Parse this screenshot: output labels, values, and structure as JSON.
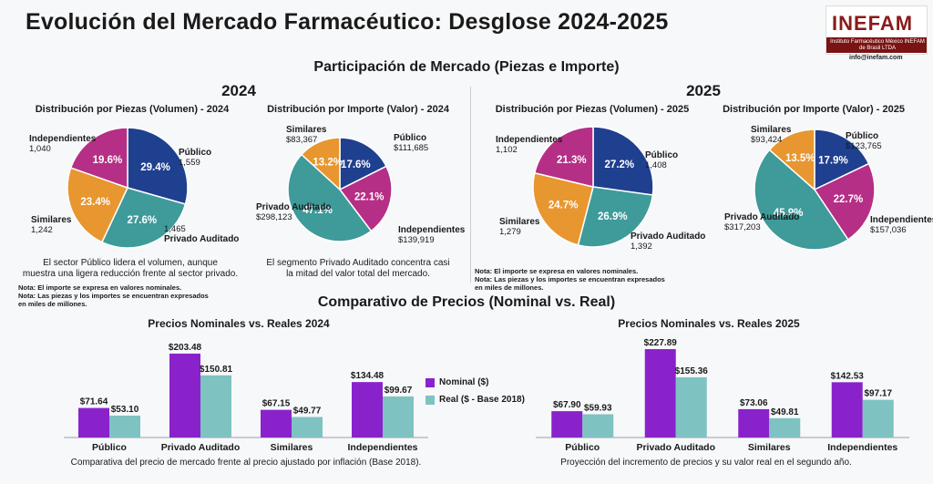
{
  "header": {
    "title": "Evolución del Mercado Farmacéutico: Desglose 2024-2025",
    "logo_word": "INEFAM",
    "logo_sub": "Instituto Farmacéutico México INEFAM de Brasil LTDA",
    "email": "info@inefam.com"
  },
  "share": {
    "section_title": "Participación de Mercado (Piezas e Importe)",
    "year_2024": "2024",
    "year_2025": "2025",
    "notes_2024": [
      "Nota: El importe se expresa en valores nominales.",
      "Nota: Las piezas y los importes se encuentran expresados",
      "en miles de millones."
    ],
    "notes_2025": [
      "Nota: El importe se expresa en valores nominales.",
      "Nota: Las piezas y los importes se encuentran expresados",
      "en miles de millones."
    ]
  },
  "colors": {
    "publico": "#1f3f8f",
    "privado": "#3f9a9a",
    "similares": "#e8962f",
    "independientes": "#b52f86",
    "nominal": "#8a22cc",
    "real": "#7fc2c2"
  },
  "chart_data": [
    {
      "type": "pie",
      "id": "pie_2024_vol",
      "title": "Distribución por Piezas (Volumen) - 2024",
      "slices": [
        {
          "name": "Público",
          "pct": 29.4,
          "value": "1,559",
          "color_key": "publico"
        },
        {
          "name": "Privado Auditado",
          "pct": 27.6,
          "value": "1,465",
          "color_key": "privado"
        },
        {
          "name": "Similares",
          "pct": 23.4,
          "value": "1,242",
          "color_key": "similares"
        },
        {
          "name": "Independientes",
          "pct": 19.6,
          "value": "1,040",
          "color_key": "independientes"
        }
      ],
      "caption": [
        "El sector Público lidera el volumen, aunque",
        "muestra una ligera reducción frente al sector privado."
      ]
    },
    {
      "type": "pie",
      "id": "pie_2024_val",
      "title": "Distribución por Importe (Valor) - 2024",
      "slices": [
        {
          "name": "Público",
          "pct": 17.6,
          "value": "$111,685",
          "color_key": "publico"
        },
        {
          "name": "Independientes",
          "pct": 22.1,
          "value": "$139,919",
          "color_key": "independientes"
        },
        {
          "name": "Privado Auditado",
          "pct": 47.1,
          "value": "$298,123",
          "color_key": "privado"
        },
        {
          "name": "Similares",
          "pct": 13.2,
          "value": "$83,367",
          "color_key": "similares"
        }
      ],
      "caption": [
        "El segmento Privado Auditado concentra casi",
        "la mitad del valor total del mercado."
      ]
    },
    {
      "type": "pie",
      "id": "pie_2025_vol",
      "title": "Distribución por Piezas (Volumen) - 2025",
      "slices": [
        {
          "name": "Público",
          "pct": 27.2,
          "value": "1,408",
          "color_key": "publico"
        },
        {
          "name": "Privado Auditado",
          "pct": 26.9,
          "value": "1,392",
          "color_key": "privado"
        },
        {
          "name": "Similares",
          "pct": 24.7,
          "value": "1,279",
          "color_key": "similares"
        },
        {
          "name": "Independientes",
          "pct": 21.3,
          "value": "1,102",
          "color_key": "independientes"
        }
      ]
    },
    {
      "type": "pie",
      "id": "pie_2025_val",
      "title": "Distribución por Importe (Valor) - 2025",
      "slices": [
        {
          "name": "Público",
          "pct": 17.9,
          "value": "$123,765",
          "color_key": "publico"
        },
        {
          "name": "Independientes",
          "pct": 22.7,
          "value": "$157,036",
          "color_key": "independientes"
        },
        {
          "name": "Privado Auditado",
          "pct": 45.9,
          "value": "$317,203",
          "color_key": "privado"
        },
        {
          "name": "Similares",
          "pct": 13.5,
          "value": "$93,424",
          "color_key": "similares"
        }
      ]
    },
    {
      "type": "bar",
      "id": "bar_2024",
      "title": "Precios Nominales vs. Reales 2024",
      "categories": [
        "Público",
        "Privado Auditado",
        "Similares",
        "Independientes"
      ],
      "series": [
        {
          "name": "Nominal ($)",
          "values": [
            71.64,
            203.48,
            67.15,
            134.48
          ],
          "labels": [
            "$71.64",
            "$203.48",
            "$67.15",
            "$134.48"
          ]
        },
        {
          "name": "Real ($ - Base 2018)",
          "values": [
            53.1,
            150.81,
            49.77,
            99.67
          ],
          "labels": [
            "$53.10",
            "$150.81",
            "$49.77",
            "$99.67"
          ]
        }
      ],
      "ylim": [
        0,
        210
      ],
      "caption": "Comparativa del precio de mercado frente al precio ajustado por inflación (Base 2018)."
    },
    {
      "type": "bar",
      "id": "bar_2025",
      "title": "Precios Nominales vs. Reales 2025",
      "categories": [
        "Público",
        "Privado Auditado",
        "Similares",
        "Independientes"
      ],
      "series": [
        {
          "name": "Nominal ($)",
          "values": [
            67.9,
            227.89,
            73.06,
            142.53
          ],
          "labels": [
            "$67.90",
            "$227.89",
            "$73.06",
            "$142.53"
          ]
        },
        {
          "name": "Real ($ - Base 2018)",
          "values": [
            59.93,
            155.36,
            49.81,
            97.17
          ],
          "labels": [
            "$59.93",
            "$155.36",
            "$49.81",
            "$97.17"
          ]
        }
      ],
      "ylim": [
        0,
        235
      ],
      "caption": "Proyección del incremento de precios y su valor real en el segundo año."
    }
  ],
  "prices": {
    "section_title": "Comparativo de Precios (Nominal vs. Real)",
    "legend": [
      "Nominal ($)",
      "Real ($ - Base 2018)"
    ]
  }
}
